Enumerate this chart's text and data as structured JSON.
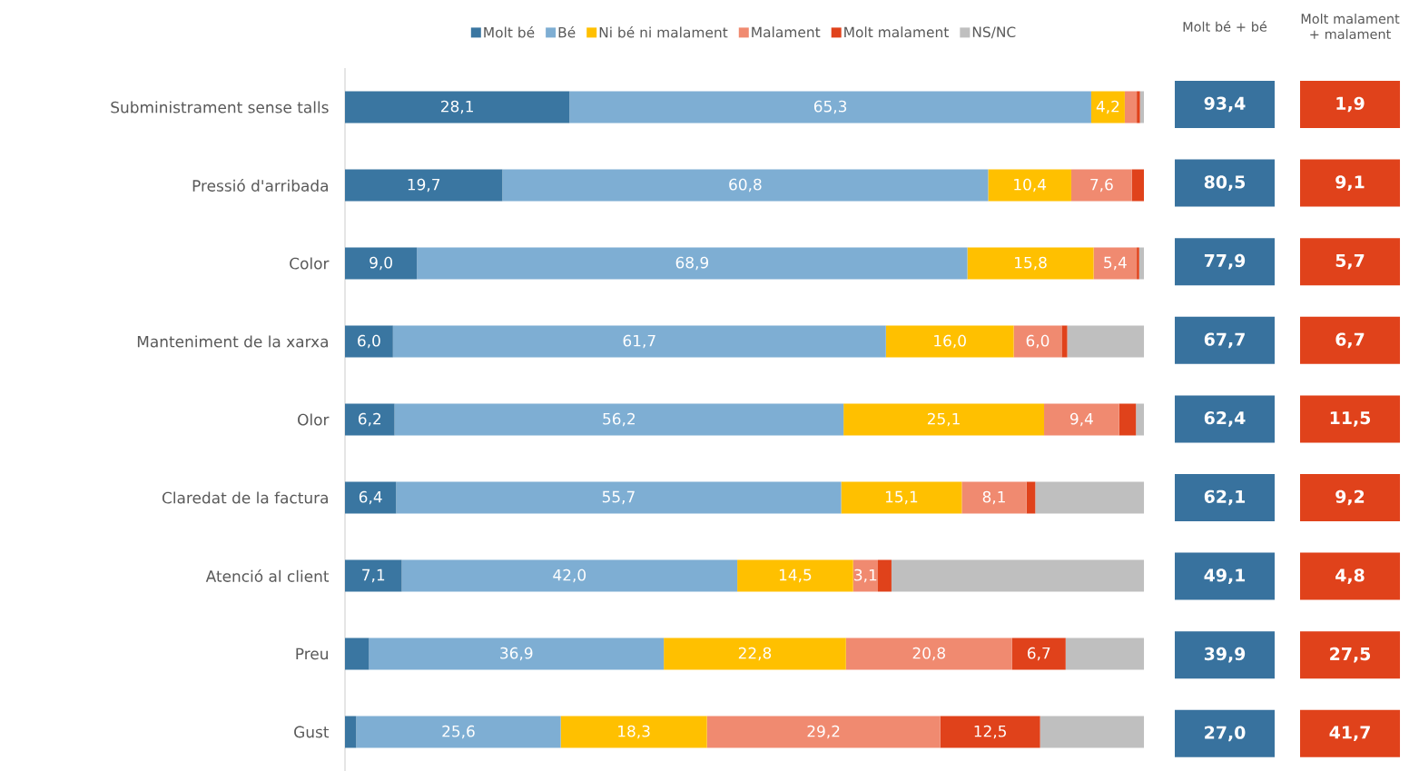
{
  "chart_data": [
    {
      "type": "bar",
      "orientation": "horizontal",
      "stacked": true,
      "legend": "top",
      "tick_labels": "y",
      "xlim": [
        0,
        100
      ],
      "categories": [
        "Subministrament sense talls",
        "Pressió d'arribada",
        "Color",
        "Manteniment de la xarxa",
        "Olor",
        "Claredat de la factura",
        "Atenció al client",
        "Preu",
        "Gust"
      ],
      "series": [
        {
          "name": "Molt bé",
          "color": "#3a76a1",
          "values": [
            28.1,
            19.7,
            9.0,
            6.0,
            6.2,
            6.4,
            7.1,
            3.0,
            1.4
          ],
          "value_labels": [
            "28,1",
            "19,7",
            "9,0",
            "6,0",
            "6,2",
            "6,4",
            "7,1",
            null,
            null
          ]
        },
        {
          "name": "Bé",
          "color": "#7eaed3",
          "values": [
            65.3,
            60.8,
            68.9,
            61.7,
            56.2,
            55.7,
            42.0,
            36.9,
            25.6
          ],
          "value_labels": [
            "65,3",
            "60,8",
            "68,9",
            "61,7",
            "56,2",
            "55,7",
            "42,0",
            "36,9",
            "25,6"
          ]
        },
        {
          "name": "Ni bé ni malament",
          "color": "#ffc000",
          "values": [
            4.2,
            10.4,
            15.8,
            16.0,
            25.1,
            15.1,
            14.5,
            22.8,
            18.3
          ],
          "value_labels": [
            "4,2",
            "10,4",
            "15,8",
            "16,0",
            "25,1",
            "15,1",
            "14,5",
            "22,8",
            "18,3"
          ]
        },
        {
          "name": "Malament",
          "color": "#f08a70",
          "values": [
            1.5,
            7.6,
            5.4,
            6.0,
            9.4,
            8.1,
            3.1,
            20.8,
            29.2
          ],
          "value_labels": [
            null,
            "7,6",
            "5,4",
            "6,0",
            "9,4",
            "8,1",
            "3,1",
            "20,8",
            "29,2"
          ]
        },
        {
          "name": "Molt malament",
          "color": "#e0421b",
          "values": [
            0.4,
            1.5,
            0.3,
            0.7,
            2.1,
            1.1,
            1.7,
            6.7,
            12.5
          ],
          "value_labels": [
            null,
            null,
            null,
            null,
            null,
            null,
            null,
            "6,7",
            "12,5"
          ]
        },
        {
          "name": "NS/NC",
          "color": "#bfbfbf",
          "values": [
            0.5,
            0.0,
            0.6,
            9.6,
            1.0,
            13.6,
            31.6,
            9.8,
            13.0
          ],
          "value_labels": [
            null,
            null,
            null,
            null,
            null,
            null,
            null,
            null,
            null
          ]
        }
      ]
    },
    {
      "type": "other",
      "title": "Molt bé + bé",
      "color": "#38729e",
      "value_labels": [
        "93,4",
        "80,5",
        "77,9",
        "67,7",
        "62,4",
        "62,1",
        "49,1",
        "39,9",
        "27,0"
      ]
    },
    {
      "type": "other",
      "title": "Molt malament + malament",
      "color": "#e0421b",
      "value_labels": [
        "1,9",
        "9,1",
        "5,7",
        "6,7",
        "11,5",
        "9,2",
        "4,8",
        "27,5",
        "41,7"
      ]
    }
  ]
}
